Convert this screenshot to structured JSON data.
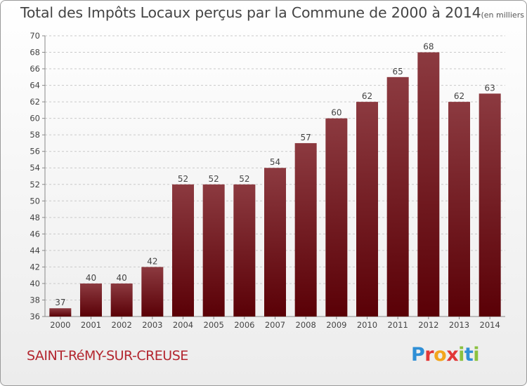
{
  "chart_data": {
    "type": "bar",
    "title": "Total des Impôts Locaux perçus par la Commune de 2000 à 2014",
    "unit": "(en milliers d'€)",
    "categories": [
      "2000",
      "2001",
      "2002",
      "2003",
      "2004",
      "2005",
      "2006",
      "2007",
      "2008",
      "2009",
      "2010",
      "2011",
      "2012",
      "2013",
      "2014"
    ],
    "values": [
      37,
      40,
      40,
      42,
      52,
      52,
      52,
      54,
      57,
      60,
      62,
      65,
      68,
      62,
      63
    ],
    "ylim": [
      36,
      70
    ],
    "yticks": [
      36,
      38,
      40,
      42,
      44,
      46,
      48,
      50,
      52,
      54,
      56,
      58,
      60,
      62,
      64,
      66,
      68,
      70
    ],
    "xlabel": "",
    "ylabel": "",
    "grid": true
  },
  "commune": "SAINT-RéMY-SUR-CREUSE",
  "logo": [
    "P",
    "r",
    "o",
    "x",
    "i",
    "t",
    "i"
  ],
  "colors": {
    "bar_top": "#8c3a40",
    "bar_bottom": "#5a0006",
    "accent": "#b3262f"
  }
}
